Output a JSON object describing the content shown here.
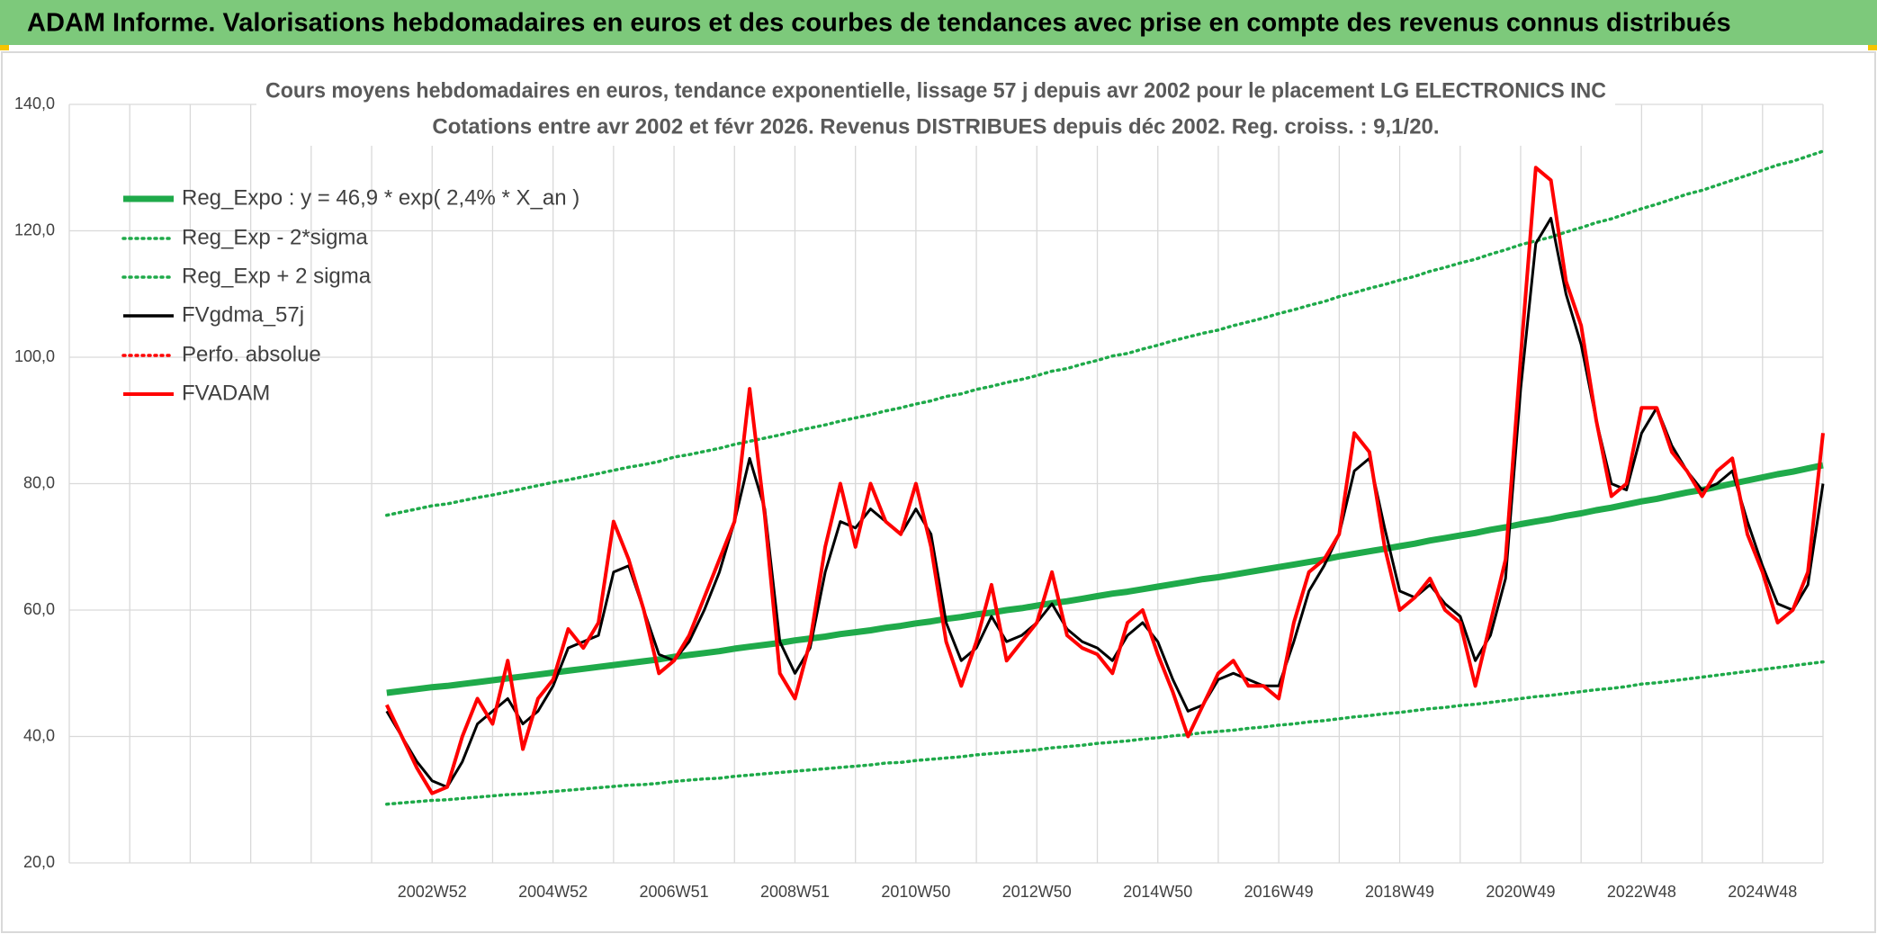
{
  "header": {
    "title": "ADAM Informe. Valorisations hebdomadaires en euros et des courbes de tendances avec prise en compte des revenus connus distribués"
  },
  "chart_data": {
    "type": "line",
    "title": "Cours moyens hebdomadaires en euros, tendance exponentielle, lissage 57 j depuis avr 2002 pour le placement LG ELECTRONICS INC",
    "subtitle": "Cotations entre avr 2002 et févr 2026. Revenus DISTRIBUES depuis déc 2002. Reg. croiss. : 9,1/20.",
    "categories": [
      null,
      null,
      null,
      null,
      null,
      null,
      null,
      null,
      null,
      null,
      null,
      null,
      null,
      null,
      null,
      null,
      null,
      null,
      null,
      null,
      null,
      null,
      null,
      null,
      "2002W52",
      null,
      null,
      null,
      null,
      null,
      null,
      null,
      "2004W52",
      null,
      null,
      null,
      null,
      null,
      null,
      null,
      "2006W51",
      null,
      null,
      null,
      null,
      null,
      null,
      null,
      "2008W51",
      null,
      null,
      null,
      null,
      null,
      null,
      null,
      "2010W50",
      null,
      null,
      null,
      null,
      null,
      null,
      null,
      "2012W50",
      null,
      null,
      null,
      null,
      null,
      null,
      null,
      "2014W50",
      null,
      null,
      null,
      null,
      null,
      null,
      null,
      "2016W49",
      null,
      null,
      null,
      null,
      null,
      null,
      null,
      "2018W49",
      null,
      null,
      null,
      null,
      null,
      null,
      null,
      "2020W49",
      null,
      null,
      null,
      null,
      null,
      null,
      null,
      "2022W48",
      null,
      null,
      null,
      null,
      null,
      null,
      null,
      "2024W48",
      null,
      null,
      null,
      null
    ],
    "ylim": [
      20,
      140
    ],
    "yticks": [
      {
        "value": 20,
        "label": "20,0"
      },
      {
        "value": 40,
        "label": "40,0"
      },
      {
        "value": 60,
        "label": "60,0"
      },
      {
        "value": 80,
        "label": "80,0"
      },
      {
        "value": 100,
        "label": "100,0"
      },
      {
        "value": 120,
        "label": "120,0"
      },
      {
        "value": 140,
        "label": "140,0"
      }
    ],
    "grid": true,
    "series": [
      {
        "name": "Reg_Expo : y = 46,9 * exp( 2,4% *  X_an )",
        "color": "#1faa4a",
        "line_style": "solid",
        "values": [
          null,
          null,
          null,
          null,
          null,
          null,
          null,
          null,
          null,
          null,
          null,
          null,
          null,
          null,
          null,
          null,
          null,
          null,
          null,
          null,
          null,
          46.9,
          47.2,
          47.5,
          47.8,
          48.0,
          48.3,
          48.6,
          48.9,
          49.2,
          49.5,
          49.8,
          50.1,
          50.4,
          50.7,
          51.0,
          51.3,
          51.6,
          51.9,
          52.2,
          52.6,
          52.9,
          53.2,
          53.5,
          53.9,
          54.2,
          54.5,
          54.8,
          55.2,
          55.5,
          55.8,
          56.2,
          56.5,
          56.8,
          57.2,
          57.5,
          57.9,
          58.2,
          58.6,
          58.9,
          59.3,
          59.6,
          60.0,
          60.3,
          60.7,
          61.1,
          61.4,
          61.8,
          62.2,
          62.6,
          62.9,
          63.3,
          63.7,
          64.1,
          64.5,
          64.9,
          65.2,
          65.6,
          66.0,
          66.4,
          66.8,
          67.2,
          67.6,
          68.0,
          68.5,
          68.9,
          69.3,
          69.7,
          70.1,
          70.5,
          71.0,
          71.4,
          71.8,
          72.2,
          72.7,
          73.1,
          73.6,
          74.0,
          74.4,
          74.9,
          75.3,
          75.8,
          76.2,
          76.7,
          77.2,
          77.6,
          78.1,
          78.6,
          79.0,
          79.5,
          80.0,
          80.5,
          81.0,
          81.5,
          81.9,
          82.4,
          82.9
        ]
      },
      {
        "name": "Reg_Exp - 2*sigma",
        "color": "#1faa4a",
        "line_style": "dotted",
        "values": [
          null,
          null,
          null,
          null,
          null,
          null,
          null,
          null,
          null,
          null,
          null,
          null,
          null,
          null,
          null,
          null,
          null,
          null,
          null,
          null,
          null,
          29.3,
          29.5,
          29.7,
          29.9,
          30.0,
          30.2,
          30.4,
          30.6,
          30.8,
          30.9,
          31.1,
          31.3,
          31.5,
          31.7,
          31.9,
          32.1,
          32.3,
          32.4,
          32.6,
          32.9,
          33.1,
          33.3,
          33.4,
          33.7,
          33.9,
          34.1,
          34.3,
          34.5,
          34.7,
          34.9,
          35.1,
          35.3,
          35.5,
          35.8,
          35.9,
          36.2,
          36.4,
          36.6,
          36.8,
          37.1,
          37.3,
          37.5,
          37.7,
          37.9,
          38.2,
          38.4,
          38.6,
          38.9,
          39.1,
          39.3,
          39.6,
          39.8,
          40.1,
          40.3,
          40.6,
          40.8,
          41.0,
          41.3,
          41.5,
          41.8,
          42.0,
          42.3,
          42.5,
          42.8,
          43.1,
          43.3,
          43.6,
          43.8,
          44.1,
          44.4,
          44.6,
          44.9,
          45.1,
          45.4,
          45.7,
          46.0,
          46.3,
          46.5,
          46.8,
          47.1,
          47.4,
          47.6,
          47.9,
          48.3,
          48.5,
          48.8,
          49.1,
          49.4,
          49.7,
          50.0,
          50.3,
          50.6,
          50.9,
          51.2,
          51.5,
          51.8
        ]
      },
      {
        "name": "Reg_Exp + 2 sigma",
        "color": "#1faa4a",
        "line_style": "dotted",
        "values": [
          null,
          null,
          null,
          null,
          null,
          null,
          null,
          null,
          null,
          null,
          null,
          null,
          null,
          null,
          null,
          null,
          null,
          null,
          null,
          null,
          null,
          75.0,
          75.5,
          76.0,
          76.5,
          76.8,
          77.3,
          77.8,
          78.2,
          78.7,
          79.2,
          79.7,
          80.2,
          80.6,
          81.1,
          81.6,
          82.1,
          82.6,
          83.0,
          83.5,
          84.2,
          84.6,
          85.1,
          85.6,
          86.2,
          86.7,
          87.2,
          87.7,
          88.3,
          88.8,
          89.3,
          89.9,
          90.4,
          90.9,
          91.5,
          92.0,
          92.6,
          93.1,
          93.8,
          94.2,
          94.9,
          95.4,
          96.0,
          96.5,
          97.1,
          97.8,
          98.2,
          98.9,
          99.5,
          100.2,
          100.6,
          101.3,
          101.9,
          102.6,
          103.2,
          103.8,
          104.3,
          105.0,
          105.6,
          106.2,
          106.9,
          107.5,
          108.2,
          108.8,
          109.6,
          110.2,
          110.9,
          111.5,
          112.2,
          112.8,
          113.6,
          114.2,
          114.9,
          115.5,
          116.3,
          117.0,
          117.8,
          118.4,
          119.0,
          119.8,
          120.5,
          121.3,
          121.9,
          122.7,
          123.5,
          124.2,
          125.0,
          125.8,
          126.4,
          127.2,
          128.0,
          128.8,
          129.6,
          130.4,
          131.0,
          131.8,
          132.6
        ]
      },
      {
        "name": "FVgdma_57j",
        "color": "#000000",
        "line_style": "solid",
        "values": [
          null,
          null,
          null,
          null,
          null,
          null,
          null,
          null,
          null,
          null,
          null,
          null,
          null,
          null,
          null,
          null,
          null,
          null,
          null,
          null,
          null,
          44,
          40,
          36,
          33,
          32,
          36,
          42,
          44,
          46,
          42,
          44,
          48,
          54,
          55,
          56,
          66,
          67,
          60,
          53,
          52,
          55,
          60,
          66,
          74,
          84,
          76,
          55,
          50,
          54,
          66,
          74,
          73,
          76,
          74,
          72,
          76,
          72,
          58,
          52,
          54,
          59,
          55,
          56,
          58,
          61,
          57,
          55,
          54,
          52,
          56,
          58,
          55,
          49,
          44,
          45,
          49,
          50,
          49,
          48,
          48,
          55,
          63,
          67,
          72,
          82,
          84,
          73,
          63,
          62,
          64,
          61,
          59,
          52,
          56,
          65,
          95,
          118,
          122,
          110,
          102,
          90,
          80,
          79,
          88,
          92,
          86,
          82,
          79,
          80,
          82,
          74,
          67,
          61,
          60,
          64,
          80
        ]
      },
      {
        "name": "Perfo. absolue",
        "color": "#ff0000",
        "line_style": "dotted",
        "values": [
          null,
          null,
          null,
          null,
          null,
          null,
          null,
          null,
          null,
          null,
          null,
          null,
          null,
          null,
          null,
          null,
          null,
          null,
          null,
          null,
          null,
          null,
          null,
          null,
          null,
          null,
          null,
          null,
          null,
          null,
          null,
          null,
          null,
          null,
          null,
          null,
          null,
          null,
          null,
          null,
          null,
          null,
          null,
          null,
          null,
          null,
          null,
          null,
          null,
          null,
          null,
          null,
          null,
          null,
          null,
          null,
          null,
          null,
          null,
          null,
          null,
          null,
          null,
          null,
          null,
          null,
          null,
          null,
          null,
          null,
          null,
          null,
          null,
          null,
          null,
          null,
          null,
          null,
          null,
          null,
          null,
          null,
          null,
          null,
          null,
          null,
          null,
          null,
          null,
          null,
          null,
          null,
          null,
          null,
          null,
          null,
          null,
          null,
          null,
          null,
          null,
          null,
          null,
          null,
          null,
          null,
          null,
          null,
          null,
          null,
          null,
          null,
          null,
          null,
          null,
          null,
          null
        ]
      },
      {
        "name": "FVADAM",
        "color": "#ff0000",
        "line_style": "solid",
        "values": [
          null,
          null,
          null,
          null,
          null,
          null,
          null,
          null,
          null,
          null,
          null,
          null,
          null,
          null,
          null,
          null,
          null,
          null,
          null,
          null,
          null,
          45,
          40,
          35,
          31,
          32,
          40,
          46,
          42,
          52,
          38,
          46,
          49,
          57,
          54,
          58,
          74,
          68,
          60,
          50,
          52,
          56,
          62,
          68,
          74,
          95,
          75,
          50,
          46,
          55,
          70,
          80,
          70,
          80,
          74,
          72,
          80,
          70,
          55,
          48,
          55,
          64,
          52,
          55,
          58,
          66,
          56,
          54,
          53,
          50,
          58,
          60,
          53,
          47,
          40,
          45,
          50,
          52,
          48,
          48,
          46,
          58,
          66,
          68,
          72,
          88,
          85,
          70,
          60,
          62,
          65,
          60,
          58,
          48,
          58,
          68,
          100,
          130,
          128,
          112,
          105,
          90,
          78,
          80,
          92,
          92,
          85,
          82,
          78,
          82,
          84,
          72,
          66,
          58,
          60,
          66,
          88
        ]
      }
    ]
  }
}
